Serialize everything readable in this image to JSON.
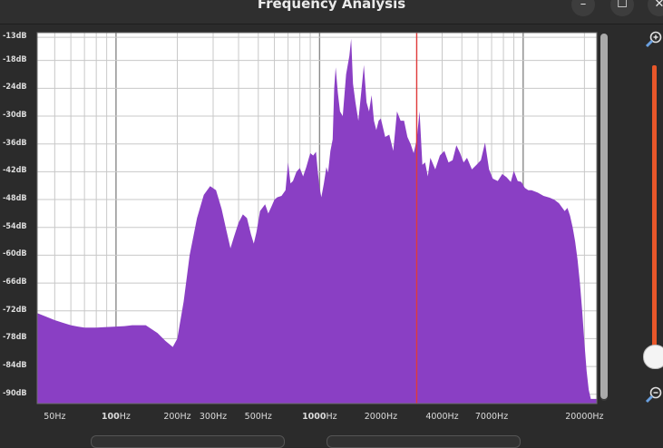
{
  "window": {
    "title": "Frequency Analysis",
    "minimize_label": "–",
    "maximize_label": "☐",
    "close_label": "✕"
  },
  "colors": {
    "spectrum_fill": "#8a3fc4",
    "cursor_line": "#e03a3a",
    "grid": "#c8c8c8",
    "plot_bg": "#ffffff",
    "zoom_slider": "#e8572a"
  },
  "icons": {
    "zoom_in": "magnifier-plus-icon",
    "zoom_out": "magnifier-minus-icon"
  },
  "zoom_slider": {
    "level": 0.03
  },
  "chart_data": {
    "type": "area",
    "x_scale": "log",
    "xlim": [
      41,
      23000
    ],
    "ylim": [
      -92,
      -12
    ],
    "grid": true,
    "y_ticks": [
      "-13dB",
      "-18dB",
      "-24dB",
      "-30dB",
      "-36dB",
      "-42dB",
      "-48dB",
      "-54dB",
      "-60dB",
      "-66dB",
      "-72dB",
      "-78dB",
      "-84dB",
      "-90dB"
    ],
    "y_tick_values": [
      -13,
      -18,
      -24,
      -30,
      -36,
      -42,
      -48,
      -54,
      -60,
      -66,
      -72,
      -78,
      -84,
      -90
    ],
    "x_tick_labels": [
      {
        "label": "50Hz",
        "hz": 50,
        "bold": false
      },
      {
        "label": "100Hz",
        "hz": 100,
        "bold": true
      },
      {
        "label": "200Hz",
        "hz": 200,
        "bold": false
      },
      {
        "label": "300Hz",
        "hz": 300,
        "bold": false
      },
      {
        "label": "500Hz",
        "hz": 500,
        "bold": false
      },
      {
        "label": "1000Hz",
        "hz": 1000,
        "bold": true
      },
      {
        "label": "2000Hz",
        "hz": 2000,
        "bold": false
      },
      {
        "label": "4000Hz",
        "hz": 4000,
        "bold": false
      },
      {
        "label": "7000Hz",
        "hz": 7000,
        "bold": false
      },
      {
        "label": "20000Hz",
        "hz": 20000,
        "bold": false
      }
    ],
    "cursor_hz": 3000,
    "spectrum": [
      [
        41,
        -72.5
      ],
      [
        45,
        -73.2
      ],
      [
        50,
        -74
      ],
      [
        55,
        -74.6
      ],
      [
        60,
        -75.1
      ],
      [
        65,
        -75.4
      ],
      [
        70,
        -75.6
      ],
      [
        80,
        -75.6
      ],
      [
        90,
        -75.5
      ],
      [
        100,
        -75.4
      ],
      [
        110,
        -75.3
      ],
      [
        120,
        -75.1
      ],
      [
        140,
        -75.1
      ],
      [
        160,
        -76.8
      ],
      [
        175,
        -78.5
      ],
      [
        190,
        -79.8
      ],
      [
        200,
        -78
      ],
      [
        215,
        -70
      ],
      [
        230,
        -60
      ],
      [
        250,
        -52
      ],
      [
        270,
        -47
      ],
      [
        290,
        -45.1
      ],
      [
        310,
        -46
      ],
      [
        330,
        -50
      ],
      [
        350,
        -55
      ],
      [
        365,
        -58.5
      ],
      [
        380,
        -56
      ],
      [
        400,
        -53
      ],
      [
        420,
        -51.2
      ],
      [
        440,
        -52
      ],
      [
        460,
        -55.5
      ],
      [
        475,
        -57.5
      ],
      [
        490,
        -55
      ],
      [
        510,
        -50.5
      ],
      [
        540,
        -49
      ],
      [
        560,
        -51
      ],
      [
        580,
        -49.5
      ],
      [
        600,
        -48
      ],
      [
        620,
        -47.5
      ],
      [
        650,
        -47.2
      ],
      [
        680,
        -46
      ],
      [
        700,
        -40
      ],
      [
        720,
        -44.5
      ],
      [
        740,
        -44
      ],
      [
        770,
        -42
      ],
      [
        800,
        -41.2
      ],
      [
        830,
        -43
      ],
      [
        860,
        -41
      ],
      [
        900,
        -38
      ],
      [
        930,
        -38.5
      ],
      [
        960,
        -37.7
      ],
      [
        980,
        -42
      ],
      [
        1000,
        -45.5
      ],
      [
        1020,
        -47.5
      ],
      [
        1050,
        -44.5
      ],
      [
        1080,
        -41
      ],
      [
        1100,
        -42.2
      ],
      [
        1130,
        -37.5
      ],
      [
        1160,
        -35
      ],
      [
        1180,
        -24
      ],
      [
        1200,
        -19.5
      ],
      [
        1230,
        -25
      ],
      [
        1260,
        -29
      ],
      [
        1300,
        -30
      ],
      [
        1350,
        -21
      ],
      [
        1400,
        -17
      ],
      [
        1430,
        -13.3
      ],
      [
        1460,
        -23
      ],
      [
        1500,
        -27
      ],
      [
        1550,
        -31
      ],
      [
        1600,
        -25
      ],
      [
        1650,
        -19
      ],
      [
        1700,
        -27
      ],
      [
        1750,
        -29
      ],
      [
        1800,
        -25.5
      ],
      [
        1850,
        -31
      ],
      [
        1900,
        -33
      ],
      [
        1950,
        -31
      ],
      [
        2000,
        -30.5
      ],
      [
        2100,
        -34.5
      ],
      [
        2200,
        -34
      ],
      [
        2300,
        -37.5
      ],
      [
        2400,
        -29
      ],
      [
        2500,
        -31
      ],
      [
        2600,
        -31
      ],
      [
        2700,
        -34.5
      ],
      [
        2800,
        -36
      ],
      [
        2900,
        -38
      ],
      [
        3000,
        -35
      ],
      [
        3100,
        -29
      ],
      [
        3200,
        -40.5
      ],
      [
        3300,
        -40
      ],
      [
        3400,
        -43
      ],
      [
        3500,
        -39
      ],
      [
        3700,
        -41.5
      ],
      [
        3900,
        -38.5
      ],
      [
        4100,
        -37.5
      ],
      [
        4300,
        -40
      ],
      [
        4500,
        -39.5
      ],
      [
        4700,
        -36.3
      ],
      [
        4900,
        -38
      ],
      [
        5100,
        -40
      ],
      [
        5300,
        -39
      ],
      [
        5600,
        -41.5
      ],
      [
        5900,
        -40.5
      ],
      [
        6200,
        -39.5
      ],
      [
        6500,
        -35.7
      ],
      [
        6800,
        -41.5
      ],
      [
        7100,
        -43.5
      ],
      [
        7500,
        -44
      ],
      [
        7900,
        -42.5
      ],
      [
        8300,
        -43.2
      ],
      [
        8700,
        -44.2
      ],
      [
        9000,
        -41.8
      ],
      [
        9400,
        -44
      ],
      [
        9800,
        -44.2
      ],
      [
        10200,
        -45.5
      ],
      [
        10600,
        -46
      ],
      [
        11000,
        -46
      ],
      [
        11800,
        -46.5
      ],
      [
        12600,
        -47.2
      ],
      [
        13500,
        -47.6
      ],
      [
        14200,
        -48
      ],
      [
        15000,
        -48.8
      ],
      [
        16000,
        -50.5
      ],
      [
        16500,
        -49.8
      ],
      [
        17000,
        -51.5
      ],
      [
        17500,
        -54
      ],
      [
        18000,
        -57
      ],
      [
        18500,
        -61
      ],
      [
        19000,
        -66
      ],
      [
        19500,
        -72
      ],
      [
        20000,
        -79
      ],
      [
        20500,
        -85
      ],
      [
        21000,
        -89
      ],
      [
        21500,
        -91
      ],
      [
        23000,
        -91
      ]
    ]
  }
}
